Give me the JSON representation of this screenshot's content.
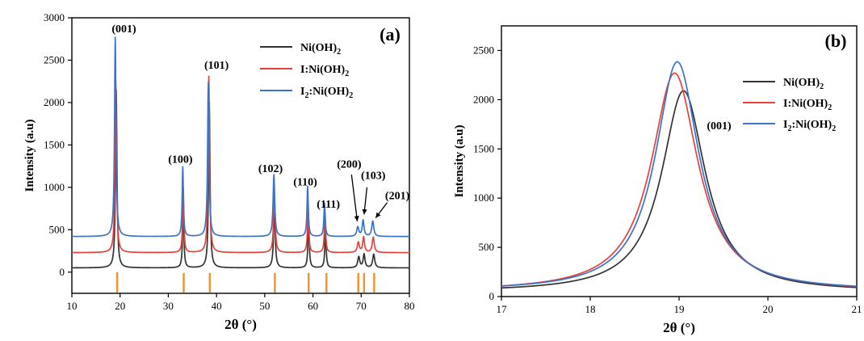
{
  "chart_data": [
    {
      "type": "line",
      "panel_label": "(a)",
      "xlabel": "2θ (°)",
      "ylabel": "Intensity (a.u)",
      "xlim": [
        10,
        80
      ],
      "ylim": [
        -250,
        3000
      ],
      "x_ticks": [
        10,
        20,
        30,
        40,
        50,
        60,
        70,
        80
      ],
      "y_ticks": [
        0,
        500,
        1000,
        1500,
        2000,
        2500,
        3000
      ],
      "legend_position": "top-right",
      "colors": {
        "Ni(OH)2": "#333333",
        "I:Ni(OH)2": "#e8413b",
        "I2:Ni(OH)2": "#3b74c6",
        "reference": "#f0922e"
      },
      "legend": [
        {
          "key": "Ni(OH)2",
          "label": "Ni(OH)2",
          "base": "Ni(OH)",
          "sub": "2"
        },
        {
          "key": "I:Ni(OH)2",
          "label": "I:Ni(OH)2",
          "base": "I:Ni(OH)",
          "sub": "2"
        },
        {
          "key": "I2:Ni(OH)2",
          "label": "I2:Ni(OH)2",
          "pre": "I",
          "pre_sub": "2",
          "base": ":Ni(OH)",
          "sub": "2"
        }
      ],
      "series": [
        {
          "key": "Ni(OH)2",
          "baseline": 50,
          "peaks": [
            {
              "x": 19.2,
              "h": 2100,
              "w": 0.18
            },
            {
              "x": 33.1,
              "h": 800,
              "w": 0.15
            },
            {
              "x": 38.5,
              "h": 1950,
              "w": 0.18
            },
            {
              "x": 52.0,
              "h": 730,
              "w": 0.2
            },
            {
              "x": 59.1,
              "h": 560,
              "w": 0.16
            },
            {
              "x": 62.6,
              "h": 450,
              "w": 0.16
            },
            {
              "x": 69.5,
              "h": 130,
              "w": 0.25
            },
            {
              "x": 70.6,
              "h": 160,
              "w": 0.22
            },
            {
              "x": 72.6,
              "h": 160,
              "w": 0.25
            }
          ]
        },
        {
          "key": "I:Ni(OH)2",
          "baseline": 230,
          "peaks": [
            {
              "x": 19.1,
              "h": 2020,
              "w": 0.18
            },
            {
              "x": 33.1,
              "h": 770,
              "w": 0.15
            },
            {
              "x": 38.4,
              "h": 2080,
              "w": 0.18
            },
            {
              "x": 52.0,
              "h": 700,
              "w": 0.2
            },
            {
              "x": 59.0,
              "h": 540,
              "w": 0.16
            },
            {
              "x": 62.5,
              "h": 460,
              "w": 0.16
            },
            {
              "x": 69.4,
              "h": 120,
              "w": 0.25
            },
            {
              "x": 70.5,
              "h": 180,
              "w": 0.22
            },
            {
              "x": 72.5,
              "h": 180,
              "w": 0.25
            }
          ]
        },
        {
          "key": "I2:Ni(OH)2",
          "baseline": 420,
          "peaks": [
            {
              "x": 19.0,
              "h": 2350,
              "w": 0.18
            },
            {
              "x": 33.0,
              "h": 820,
              "w": 0.15
            },
            {
              "x": 38.3,
              "h": 1820,
              "w": 0.18
            },
            {
              "x": 51.9,
              "h": 730,
              "w": 0.2
            },
            {
              "x": 58.9,
              "h": 590,
              "w": 0.16
            },
            {
              "x": 62.4,
              "h": 390,
              "w": 0.16
            },
            {
              "x": 69.3,
              "h": 110,
              "w": 0.25
            },
            {
              "x": 70.4,
              "h": 190,
              "w": 0.22
            },
            {
              "x": 72.4,
              "h": 180,
              "w": 0.25
            }
          ]
        }
      ],
      "reference_lines": [
        {
          "x": 19.4,
          "y_top": 0
        },
        {
          "x": 33.2,
          "y_top": -10
        },
        {
          "x": 38.6,
          "y_top": -10
        },
        {
          "x": 52.1,
          "y_top": -10
        },
        {
          "x": 59.1,
          "y_top": -10
        },
        {
          "x": 62.8,
          "y_top": -10
        },
        {
          "x": 69.4,
          "y_top": -10
        },
        {
          "x": 70.6,
          "y_top": -10
        },
        {
          "x": 72.7,
          "y_top": -10
        }
      ],
      "peak_labels": [
        {
          "text": "(001)",
          "x": 20.8,
          "y": 2830
        },
        {
          "text": "(101)",
          "x": 40.0,
          "y": 2400
        },
        {
          "text": "(100)",
          "x": 32.5,
          "y": 1290
        },
        {
          "text": "(102)",
          "x": 51.2,
          "y": 1180
        },
        {
          "text": "(110)",
          "x": 58.4,
          "y": 1020
        },
        {
          "text": "(111)",
          "x": 63.2,
          "y": 760
        },
        {
          "text": "(200)",
          "x": 67.5,
          "y": 1230
        },
        {
          "text": "(103)",
          "x": 72.5,
          "y": 1100
        },
        {
          "text": "(201)",
          "x": 77.5,
          "y": 860
        }
      ],
      "annotation_arrows": [
        {
          "from": [
            68.0,
            1150
          ],
          "to": [
            69.2,
            600
          ]
        },
        {
          "from": [
            71.2,
            1000
          ],
          "to": [
            70.6,
            680
          ]
        },
        {
          "from": [
            75.4,
            820
          ],
          "to": [
            73.0,
            640
          ]
        }
      ]
    },
    {
      "type": "line",
      "panel_label": "(b)",
      "xlabel": "2θ (°)",
      "ylabel": "Intensity (a.u)",
      "xlim": [
        17,
        21
      ],
      "ylim": [
        0,
        2750
      ],
      "x_ticks": [
        17,
        18,
        19,
        20,
        21
      ],
      "y_ticks": [
        0,
        500,
        1000,
        1500,
        2000,
        2500
      ],
      "legend_position": "top-right",
      "colors": {
        "Ni(OH)2": "#333333",
        "I:Ni(OH)2": "#e8413b",
        "I2:Ni(OH)2": "#3b74c6"
      },
      "legend": [
        {
          "key": "Ni(OH)2",
          "label": "Ni(OH)2",
          "base": "Ni(OH)",
          "sub": "2"
        },
        {
          "key": "I:Ni(OH)2",
          "label": "I:Ni(OH)2",
          "base": "I:Ni(OH)",
          "sub": "2"
        },
        {
          "key": "I2:Ni(OH)2",
          "label": "I2:Ni(OH)2",
          "pre": "I",
          "pre_sub": "2",
          "base": ":Ni(OH)",
          "sub": "2"
        }
      ],
      "series": [
        {
          "key": "Ni(OH)2",
          "baseline": 45,
          "peaks": [
            {
              "x": 19.05,
              "h": 2045,
              "w": 0.3
            }
          ]
        },
        {
          "key": "I:Ni(OH)2",
          "baseline": 50,
          "peaks": [
            {
              "x": 18.95,
              "h": 2220,
              "w": 0.32
            }
          ]
        },
        {
          "key": "I2:Ni(OH)2",
          "baseline": 55,
          "peaks": [
            {
              "x": 18.98,
              "h": 2330,
              "w": 0.3
            }
          ]
        }
      ],
      "peak_labels": [
        {
          "text": "(001)",
          "x": 19.45,
          "y": 1700
        }
      ]
    }
  ]
}
